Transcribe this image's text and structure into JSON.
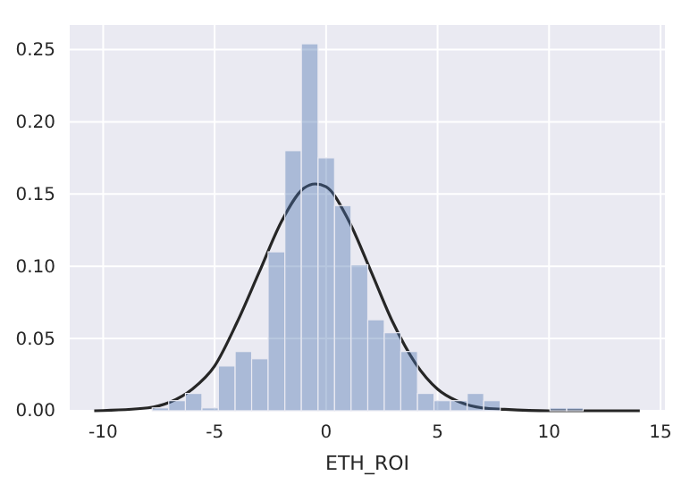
{
  "chart_data": {
    "type": "histogram",
    "xlabel": "ETH_ROI",
    "bins": [
      -10.03,
      -9.29,
      -8.54,
      -7.8,
      -7.06,
      -6.31,
      -5.57,
      -4.83,
      -4.08,
      -3.34,
      -2.6,
      -1.85,
      -1.11,
      -0.36,
      0.38,
      1.12,
      1.87,
      2.61,
      3.35,
      4.1,
      4.84,
      5.58,
      6.33,
      7.07,
      7.81,
      8.56,
      9.3,
      10.04,
      10.79,
      11.53
    ],
    "values": [
      0,
      0,
      0,
      0.002,
      0.007,
      0.012,
      0.002,
      0.031,
      0.041,
      0.036,
      0.11,
      0.18,
      0.254,
      0.175,
      0.142,
      0.101,
      0.063,
      0.054,
      0.041,
      0.012,
      0.007,
      0.007,
      0.012,
      0.007,
      0,
      0,
      0,
      0.002,
      0.002
    ],
    "color": "#4c72b0",
    "series": [
      {
        "type": "line",
        "color": "#262626",
        "x": [
          -10.4,
          -8,
          -7,
          -6,
          -5,
          -4,
          -3,
          -2,
          -1,
          -0.48,
          0,
          1,
          2,
          3,
          4,
          5,
          6,
          7,
          8,
          10,
          14.07
        ],
        "values": [
          0,
          0.002,
          0.006,
          0.015,
          0.031,
          0.061,
          0.096,
          0.131,
          0.154,
          0.157,
          0.155,
          0.132,
          0.097,
          0.061,
          0.033,
          0.015,
          0.006,
          0.002,
          0.001,
          0,
          0
        ]
      }
    ],
    "xlim": [
      -11.5,
      15.2
    ],
    "xticks": [
      -10,
      -5,
      0,
      5,
      10,
      15
    ],
    "ylim": [
      0,
      0.267
    ],
    "yticks": [
      {
        "value": 0,
        "label": "0.00"
      },
      {
        "value": 0.05,
        "label": "0.05"
      },
      {
        "value": 0.1,
        "label": "0.10"
      },
      {
        "value": 0.15,
        "label": "0.15"
      },
      {
        "value": 0.2,
        "label": "0.20"
      },
      {
        "value": 0.25,
        "label": "0.25"
      }
    ],
    "grid": true,
    "marker": "none",
    "line_style": "solid"
  }
}
